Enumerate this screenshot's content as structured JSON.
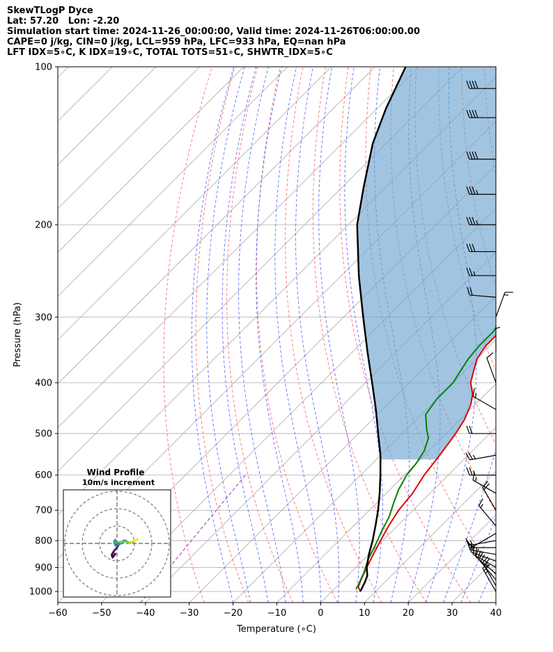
{
  "header": {
    "line1": "SkewTLogP Dyce",
    "line2": "Lat: 57.20   Lon: -2.20",
    "line3": "Simulation start time: 2024-11-26_00:00:00, Valid time: 2024-11-26T06:00:00.00",
    "line4": "CAPE=0 j/kg, CIN=0 j/kg, LCL=959 hPa, LFC=933 hPa, EQ=nan hPa",
    "line5": "LFT IDX=5∘C, K IDX=19∘C, TOTAL TOTS=51∘C, SHWTR_IDX=5∘C"
  },
  "colors": {
    "temperature": "#e00000",
    "dewpoint": "#008000",
    "parcel": "#000000",
    "cape_fill": "#6fa5cf",
    "dry_adiabat": "#ff5555",
    "moist_adiabat": "#4455ff",
    "mixing_ratio": "#9c30c0",
    "isotherm": "#aaaaaa",
    "isobar": "#aaaaaa"
  },
  "chart_data": {
    "type": "line",
    "title": "SkewTLogP Dyce",
    "xlabel": "Temperature (∘C)",
    "ylabel": "Pressure (hPa)",
    "xlim": [
      -60,
      40
    ],
    "ylim": [
      1050,
      100
    ],
    "y_scale": "log",
    "xticks": [
      "−60",
      "−50",
      "−40",
      "−30",
      "−20",
      "−10",
      "0",
      "10",
      "20",
      "30",
      "40"
    ],
    "yticks": [
      "100",
      "200",
      "300",
      "400",
      "500",
      "600",
      "700",
      "800",
      "900",
      "1000"
    ],
    "grid": true,
    "series": [
      {
        "name": "Temperature",
        "style": "red",
        "points": [
          [
            6.5,
            1000
          ],
          [
            5,
            980
          ],
          [
            4,
            950
          ],
          [
            2.5,
            900
          ],
          [
            1,
            850
          ],
          [
            -0.5,
            800
          ],
          [
            -2,
            750
          ],
          [
            -3.3,
            700
          ],
          [
            -4,
            650
          ],
          [
            -5.5,
            600
          ],
          [
            -6.5,
            550
          ],
          [
            -7.8,
            500
          ],
          [
            -9,
            470
          ],
          [
            -11,
            440
          ],
          [
            -13,
            420
          ],
          [
            -16,
            400
          ],
          [
            -18,
            380
          ],
          [
            -20,
            360
          ],
          [
            -21,
            340
          ],
          [
            -21,
            320
          ],
          [
            -21,
            310
          ],
          [
            -21,
            300
          ],
          [
            -20.5,
            290
          ],
          [
            -20,
            280
          ],
          [
            -19,
            260
          ],
          [
            -18,
            240
          ],
          [
            -17,
            230
          ],
          [
            -17,
            220
          ],
          [
            -17,
            210
          ],
          [
            -17.5,
            200
          ],
          [
            -18,
            180
          ],
          [
            -17.5,
            160
          ],
          [
            -16,
            140
          ],
          [
            -14,
            120
          ],
          [
            -11,
            110
          ],
          [
            -8,
            100
          ]
        ]
      },
      {
        "name": "Dewpoint",
        "style": "green",
        "points": [
          [
            5,
            990
          ],
          [
            4.5,
            970
          ],
          [
            3,
            920
          ],
          [
            1,
            870
          ],
          [
            -0.5,
            820
          ],
          [
            -2.3,
            770
          ],
          [
            -4,
            720
          ],
          [
            -6,
            680
          ],
          [
            -8,
            640
          ],
          [
            -9.5,
            600
          ],
          [
            -10,
            570
          ],
          [
            -11,
            540
          ],
          [
            -13,
            510
          ],
          [
            -15.5,
            490
          ],
          [
            -19,
            460
          ],
          [
            -20,
            430
          ],
          [
            -20,
            410
          ],
          [
            -20,
            400
          ],
          [
            -21,
            380
          ],
          [
            -22,
            360
          ],
          [
            -22.5,
            340
          ],
          [
            -22.5,
            320
          ],
          [
            -23.5,
            300
          ],
          [
            -25,
            290
          ],
          [
            -27,
            270
          ],
          [
            -29,
            250
          ],
          [
            -31,
            235
          ],
          [
            -31.5,
            225
          ],
          [
            -32.5,
            220
          ],
          [
            -33,
            210
          ],
          [
            -34,
            205
          ],
          [
            -35,
            200
          ],
          [
            -36,
            190
          ],
          [
            -37,
            180
          ],
          [
            -38,
            170
          ],
          [
            -39,
            160
          ],
          [
            -40.5,
            150
          ],
          [
            -42,
            140
          ],
          [
            -43.5,
            130
          ],
          [
            -45,
            120
          ],
          [
            -46.5,
            110
          ],
          [
            -48,
            100
          ]
        ]
      },
      {
        "name": "Parcel",
        "style": "black",
        "points": [
          [
            6.5,
            1000
          ],
          [
            5.4,
            959
          ],
          [
            4.5,
            933
          ],
          [
            2.5,
            900
          ],
          [
            0,
            850
          ],
          [
            -2.3,
            800
          ],
          [
            -5,
            750
          ],
          [
            -8,
            700
          ],
          [
            -11.5,
            650
          ],
          [
            -15.5,
            600
          ],
          [
            -20,
            550
          ],
          [
            -25.5,
            500
          ],
          [
            -31.5,
            450
          ],
          [
            -38.5,
            400
          ],
          [
            -46.5,
            350
          ],
          [
            -55.5,
            300
          ],
          [
            -66,
            250
          ],
          [
            -78,
            200
          ],
          [
            -85,
            170
          ],
          [
            -93,
            140
          ],
          [
            -98,
            120
          ],
          [
            -103,
            100
          ]
        ]
      }
    ],
    "wind_barbs": {
      "units": "kt",
      "levels": [
        {
          "p": 1000,
          "speed": 25,
          "dir": 330
        },
        {
          "p": 975,
          "speed": 25,
          "dir": 330
        },
        {
          "p": 950,
          "speed": 20,
          "dir": 320
        },
        {
          "p": 925,
          "speed": 20,
          "dir": 310
        },
        {
          "p": 900,
          "speed": 20,
          "dir": 300
        },
        {
          "p": 875,
          "speed": 20,
          "dir": 290
        },
        {
          "p": 850,
          "speed": 15,
          "dir": 280
        },
        {
          "p": 825,
          "speed": 15,
          "dir": 270
        },
        {
          "p": 800,
          "speed": 15,
          "dir": 260
        },
        {
          "p": 775,
          "speed": 10,
          "dir": 240
        },
        {
          "p": 750,
          "speed": 15,
          "dir": 320
        },
        {
          "p": 700,
          "speed": 20,
          "dir": 330
        },
        {
          "p": 650,
          "speed": 15,
          "dir": 300
        },
        {
          "p": 600,
          "speed": 25,
          "dir": 270
        },
        {
          "p": 550,
          "speed": 25,
          "dir": 260
        },
        {
          "p": 500,
          "speed": 20,
          "dir": 270
        },
        {
          "p": 450,
          "speed": 15,
          "dir": 300
        },
        {
          "p": 400,
          "speed": 10,
          "dir": 340
        },
        {
          "p": 350,
          "speed": 5,
          "dir": 0
        },
        {
          "p": 300,
          "speed": 15,
          "dir": 20
        },
        {
          "p": 275,
          "speed": 20,
          "dir": 275
        },
        {
          "p": 250,
          "speed": 25,
          "dir": 270
        },
        {
          "p": 225,
          "speed": 30,
          "dir": 270
        },
        {
          "p": 200,
          "speed": 35,
          "dir": 270
        },
        {
          "p": 175,
          "speed": 35,
          "dir": 270
        },
        {
          "p": 150,
          "speed": 40,
          "dir": 270
        },
        {
          "p": 125,
          "speed": 40,
          "dir": 270
        },
        {
          "p": 110,
          "speed": 40,
          "dir": 270
        }
      ]
    },
    "hodograph": {
      "title": "Wind Profile",
      "subtitle": "10m/s increment",
      "ring_step_ms": 10,
      "points": [
        [
          -1,
          -6
        ],
        [
          -2.5,
          -8
        ],
        [
          -3,
          -6.5
        ],
        [
          -1.5,
          -4
        ],
        [
          -0.5,
          -3
        ],
        [
          0.5,
          -1.5
        ],
        [
          1,
          0
        ],
        [
          1.5,
          0.5
        ],
        [
          3,
          1
        ],
        [
          4,
          1.5
        ],
        [
          5,
          1.5
        ],
        [
          3,
          0.5
        ],
        [
          1,
          -0.5
        ],
        [
          -1,
          -1
        ],
        [
          -1,
          0.5
        ],
        [
          -1.5,
          0.5
        ],
        [
          -1.5,
          1.5
        ],
        [
          -1,
          2
        ],
        [
          -1,
          1
        ],
        [
          -0.5,
          0.5
        ],
        [
          1,
          0.5
        ],
        [
          2,
          0.5
        ],
        [
          4,
          1
        ],
        [
          6,
          1
        ],
        [
          7,
          0.5
        ],
        [
          8,
          0.5
        ],
        [
          9,
          1
        ],
        [
          10,
          1.5
        ],
        [
          11,
          2
        ],
        [
          12,
          2.5
        ]
      ]
    }
  }
}
